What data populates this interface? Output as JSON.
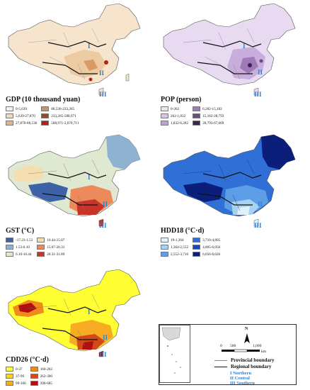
{
  "panels": [
    {
      "id": "gdp",
      "title": "GDP (10 thousand yuan)",
      "legend": [
        {
          "label": "0-5,639",
          "color": "#fbeee0"
        },
        {
          "label": "88,536-233,265",
          "color": "#c89560"
        },
        {
          "label": "5,639-27,870",
          "color": "#f3d9b8"
        },
        {
          "label": "233,265-588,971",
          "color": "#9a4a20"
        },
        {
          "label": "27,870-88,536",
          "color": "#e4b685"
        },
        {
          "label": "588,971-2,070,711",
          "color": "#b82010"
        }
      ]
    },
    {
      "id": "pop",
      "title": "POP (person)",
      "legend": [
        {
          "label": "0-262",
          "color": "#ede3f3"
        },
        {
          "label": "6,282-15,182",
          "color": "#a07bb8"
        },
        {
          "label": "262-1,832",
          "color": "#d7c4e6"
        },
        {
          "label": "15,182-28,793",
          "color": "#6d4a8a"
        },
        {
          "label": "1,832-6,282",
          "color": "#bea1d4"
        },
        {
          "label": "28,793-67,009",
          "color": "#3c2258"
        }
      ]
    },
    {
      "id": "gst",
      "title": "GST (°C)",
      "legend": [
        {
          "label": "-17.23-1.53",
          "color": "#3d62a8"
        },
        {
          "label": "10.44-15.07",
          "color": "#f5ddb0"
        },
        {
          "label": "1.53-6.10",
          "color": "#8fb2d2"
        },
        {
          "label": "15.07-20.31",
          "color": "#ec8a5c"
        },
        {
          "label": "6.10-10.44",
          "color": "#dfe8d0"
        },
        {
          "label": "20.31-31.89",
          "color": "#c8332a"
        }
      ]
    },
    {
      "id": "hdd",
      "title": "HDD18 (°C·d)",
      "legend": [
        {
          "label": "19-1,364",
          "color": "#dff2fb"
        },
        {
          "label": "3,710-4,805",
          "color": "#2f6fd6"
        },
        {
          "label": "1,364-2,552",
          "color": "#a8d2f0"
        },
        {
          "label": "4,805-6,056",
          "color": "#1a47b8"
        },
        {
          "label": "2,552-3,710",
          "color": "#5e9ee6"
        },
        {
          "label": "6,056-8,026",
          "color": "#0b1f7a"
        }
      ]
    },
    {
      "id": "cdd",
      "title": "CDD26 (°C·d)",
      "legend": [
        {
          "label": "0-37",
          "color": "#ffff33"
        },
        {
          "label": "166-262",
          "color": "#f08a1c"
        },
        {
          "label": "37-99",
          "color": "#ffd21e"
        },
        {
          "label": "262-390",
          "color": "#d24a18"
        },
        {
          "label": "99-166",
          "color": "#f8ac22"
        },
        {
          "label": "390-685",
          "color": "#b01010"
        }
      ]
    }
  ],
  "region_marks": [
    "I",
    "II",
    "III"
  ],
  "side_legend": {
    "provincial": "Provincial boundary",
    "regional": "Regional boundary",
    "regions": [
      "I Northern",
      "II Central",
      "III Southern"
    ],
    "scale": [
      "0",
      "500",
      "1,000"
    ],
    "scale_unit": "km",
    "north": "N"
  },
  "colors": {
    "region_label": "#2b7fd0"
  }
}
